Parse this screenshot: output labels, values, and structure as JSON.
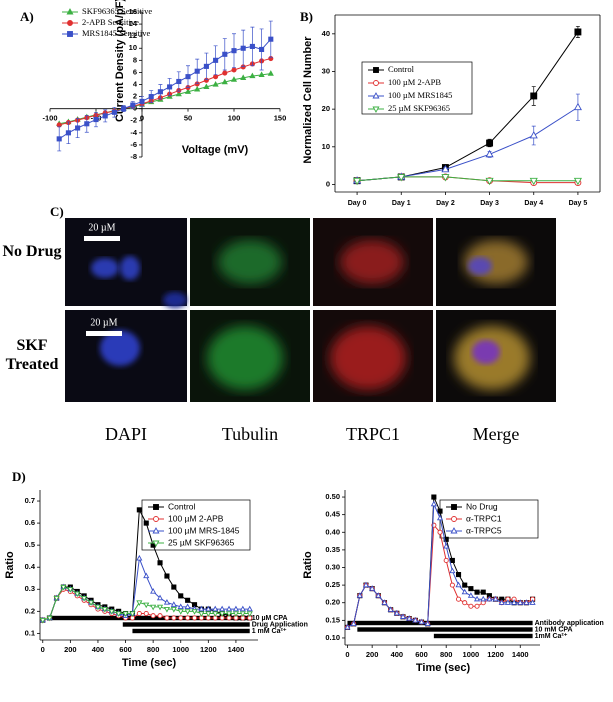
{
  "panels": {
    "a": "A)",
    "b": "B)",
    "c": "C)",
    "d": "D)"
  },
  "panel_c": {
    "rows": [
      "No Drug",
      "SKF Treated"
    ],
    "columns": [
      "DAPI",
      "Tubulin",
      "TRPC1",
      "Merge"
    ],
    "scale_bars": [
      "20 µM",
      "20 µM"
    ]
  },
  "chart_data": [
    {
      "type": "line",
      "x_label": "Voltage (mV)",
      "y_label": "Current Density (pA/pF)",
      "x": [
        -90,
        -80,
        -70,
        -60,
        -50,
        -40,
        -30,
        -20,
        -10,
        0,
        10,
        20,
        30,
        40,
        50,
        60,
        70,
        80,
        90,
        100,
        110,
        120,
        130,
        140
      ],
      "xlim": [
        -100,
        150
      ],
      "xticks": [
        -100,
        -50,
        0,
        50,
        100,
        150
      ],
      "ylim": [
        -8,
        16
      ],
      "yticks": [
        -8,
        -6,
        -4,
        -2,
        0,
        2,
        4,
        6,
        8,
        10,
        12,
        14,
        16
      ],
      "series": [
        {
          "name": "SKF96365 Sensitive",
          "color": "#3cb043",
          "marker": "triangle",
          "filled": true,
          "values": [
            -2.5,
            -2.2,
            -1.8,
            -1.4,
            -1.0,
            -0.7,
            -0.3,
            0,
            0.3,
            0.7,
            1.1,
            1.5,
            2,
            2.4,
            2.8,
            3.2,
            3.6,
            4,
            4.4,
            4.8,
            5.1,
            5.4,
            5.6,
            5.8
          ]
        },
        {
          "name": "2-APB Sensitive",
          "color": "#e03030",
          "marker": "circle",
          "filled": true,
          "values": [
            -2.7,
            -2.3,
            -1.9,
            -1.5,
            -1.1,
            -0.7,
            -0.4,
            0,
            0.4,
            0.8,
            1.3,
            1.8,
            2.4,
            3,
            3.5,
            4.1,
            4.7,
            5.3,
            5.9,
            6.4,
            6.9,
            7.4,
            7.9,
            8.3
          ]
        },
        {
          "name": "MRS1845 Sensitive",
          "color": "#3a50c8",
          "marker": "square",
          "filled": true,
          "values": [
            -5,
            -4,
            -3.2,
            -2.5,
            -1.8,
            -1.2,
            -0.6,
            0,
            0.6,
            1.2,
            2,
            2.8,
            3.6,
            4.5,
            5.3,
            6.2,
            7,
            8,
            9,
            9.6,
            10,
            10.3,
            9.8,
            11.5
          ],
          "errors": [
            2,
            1.8,
            1.6,
            1.4,
            1.2,
            1,
            0.8,
            0.5,
            0.6,
            0.8,
            1,
            1.2,
            1.4,
            1.6,
            1.8,
            2,
            2.2,
            2.4,
            2.6,
            2.8,
            3,
            3.2,
            3.4,
            3
          ]
        }
      ]
    },
    {
      "type": "line",
      "y_label": "Normalized Cell Number",
      "categories": [
        "Day 0",
        "Day 1",
        "Day 2",
        "Day 3",
        "Day 4",
        "Day 5"
      ],
      "ylim": [
        -2,
        45
      ],
      "yticks": [
        0,
        10,
        20,
        30,
        40
      ],
      "series": [
        {
          "name": "Control",
          "color": "#000000",
          "marker": "square",
          "filled": true,
          "values": [
            1,
            2,
            4.5,
            11,
            23.5,
            40.5
          ],
          "errors": [
            0.3,
            0.4,
            0.6,
            1,
            2.5,
            1.5
          ]
        },
        {
          "name": "100 µM 2-APB",
          "color": "#e03030",
          "marker": "circle",
          "filled": false,
          "values": [
            1,
            2,
            2,
            1,
            0.5,
            0.5
          ]
        },
        {
          "name": "100 µM MRS1845",
          "color": "#3a50c8",
          "marker": "triangle",
          "filled": false,
          "values": [
            1,
            2,
            4,
            8,
            13,
            20.5
          ],
          "errors": [
            0.2,
            0.3,
            0.5,
            0.8,
            2.5,
            3.5
          ]
        },
        {
          "name": "25 µM SKF96365",
          "color": "#3cb043",
          "marker": "triangle-down",
          "filled": false,
          "values": [
            1,
            2,
            2,
            1,
            1,
            1
          ]
        }
      ]
    },
    {
      "type": "line",
      "x_label": "Time (sec)",
      "y_label": "Ratio",
      "x": [
        0,
        50,
        100,
        150,
        200,
        250,
        300,
        350,
        400,
        450,
        500,
        550,
        600,
        650,
        700,
        750,
        800,
        850,
        900,
        950,
        1000,
        1050,
        1100,
        1150,
        1200,
        1250,
        1300,
        1350,
        1400,
        1450,
        1500
      ],
      "xlim": [
        -20,
        1560
      ],
      "xticks": [
        0,
        200,
        400,
        600,
        800,
        1000,
        1200,
        1400
      ],
      "ylim": [
        0.07,
        0.75
      ],
      "yticks": [
        0.1,
        0.2,
        0.3,
        0.4,
        0.5,
        0.6,
        0.7
      ],
      "bars": [
        {
          "label": "10 µM CPA",
          "start": 30,
          "end": 1500
        },
        {
          "label": "Drug Application",
          "start": 580,
          "end": 1500
        },
        {
          "label": "1 mM Ca²⁺",
          "start": 650,
          "end": 1500
        }
      ],
      "series": [
        {
          "name": "Control",
          "color": "#000000",
          "marker": "square",
          "filled": true,
          "values": [
            0.16,
            0.17,
            0.26,
            0.31,
            0.31,
            0.29,
            0.27,
            0.25,
            0.23,
            0.22,
            0.21,
            0.2,
            0.19,
            0.19,
            0.66,
            0.6,
            0.5,
            0.42,
            0.36,
            0.31,
            0.27,
            0.25,
            0.23,
            0.21,
            0.21,
            0.2,
            0.19,
            0.18,
            0.17,
            0.17,
            0.17
          ]
        },
        {
          "name": "100 µM 2-APB",
          "color": "#e03030",
          "marker": "circle",
          "filled": false,
          "values": [
            0.16,
            0.17,
            0.26,
            0.3,
            0.29,
            0.27,
            0.25,
            0.23,
            0.21,
            0.2,
            0.19,
            0.18,
            0.17,
            0.17,
            0.19,
            0.19,
            0.18,
            0.18,
            0.17,
            0.17,
            0.17,
            0.17,
            0.17,
            0.17,
            0.17,
            0.17,
            0.17,
            0.17,
            0.17,
            0.17,
            0.17
          ]
        },
        {
          "name": "100 µM MRS-1845",
          "color": "#3a50c8",
          "marker": "triangle",
          "filled": false,
          "values": [
            0.16,
            0.17,
            0.26,
            0.31,
            0.3,
            0.28,
            0.26,
            0.24,
            0.22,
            0.21,
            0.2,
            0.19,
            0.18,
            0.19,
            0.44,
            0.36,
            0.29,
            0.26,
            0.24,
            0.23,
            0.22,
            0.22,
            0.21,
            0.21,
            0.21,
            0.21,
            0.21,
            0.21,
            0.21,
            0.21,
            0.21
          ]
        },
        {
          "name": "25 µM SKF96365",
          "color": "#3cb043",
          "marker": "triangle-down",
          "filled": false,
          "values": [
            0.16,
            0.17,
            0.26,
            0.31,
            0.3,
            0.28,
            0.26,
            0.24,
            0.22,
            0.21,
            0.2,
            0.19,
            0.19,
            0.19,
            0.24,
            0.23,
            0.22,
            0.22,
            0.21,
            0.21,
            0.2,
            0.2,
            0.2,
            0.19,
            0.19,
            0.19,
            0.19,
            0.19,
            0.19,
            0.19,
            0.19
          ]
        }
      ]
    },
    {
      "type": "line",
      "x_label": "Time (sec)",
      "y_label": "Ratio",
      "x": [
        0,
        50,
        100,
        150,
        200,
        250,
        300,
        350,
        400,
        450,
        500,
        550,
        600,
        650,
        700,
        750,
        800,
        850,
        900,
        950,
        1000,
        1050,
        1100,
        1150,
        1200,
        1250,
        1300,
        1350,
        1400,
        1450,
        1500
      ],
      "xlim": [
        -20,
        1560
      ],
      "xticks": [
        0,
        200,
        400,
        600,
        800,
        1000,
        1200,
        1400
      ],
      "ylim": [
        0.08,
        0.52
      ],
      "yticks": [
        {
          "value": 0.1,
          "label": "0.10"
        },
        {
          "value": 0.15,
          "label": "0.15"
        },
        {
          "value": 0.2,
          "label": "0.20"
        },
        {
          "value": 0.25,
          "label": "0.25"
        },
        {
          "value": 0.3,
          "label": "0.30"
        },
        {
          "value": 0.35,
          "label": "0.35"
        },
        {
          "value": 0.4,
          "label": "0.40"
        },
        {
          "value": 0.45,
          "label": "0.45"
        },
        {
          "value": 0.5,
          "label": "0.50"
        }
      ],
      "bars": [
        {
          "label": "Antibody application",
          "start": 0,
          "end": 1500
        },
        {
          "label": "10 mM CPA",
          "start": 80,
          "end": 1500
        },
        {
          "label": "1mM Ca²⁺",
          "start": 700,
          "end": 1500
        }
      ],
      "series": [
        {
          "name": "No Drug",
          "color": "#000000",
          "marker": "square",
          "filled": true,
          "values": [
            0.13,
            0.14,
            0.22,
            0.25,
            0.24,
            0.22,
            0.2,
            0.18,
            0.17,
            0.16,
            0.155,
            0.15,
            0.145,
            0.14,
            0.5,
            0.46,
            0.38,
            0.32,
            0.28,
            0.25,
            0.24,
            0.23,
            0.23,
            0.22,
            0.21,
            0.21,
            0.21,
            0.2,
            0.2,
            0.2,
            0.21
          ]
        },
        {
          "name": "α-TRPC1",
          "color": "#e03030",
          "marker": "circle",
          "filled": false,
          "values": [
            0.13,
            0.14,
            0.22,
            0.25,
            0.24,
            0.22,
            0.2,
            0.18,
            0.17,
            0.16,
            0.155,
            0.15,
            0.145,
            0.14,
            0.42,
            0.4,
            0.32,
            0.25,
            0.21,
            0.2,
            0.19,
            0.19,
            0.2,
            0.21,
            0.21,
            0.2,
            0.21,
            0.21,
            0.2,
            0.2,
            0.21
          ]
        },
        {
          "name": "α-TRPC5",
          "color": "#3a50c8",
          "marker": "triangle",
          "filled": false,
          "values": [
            0.13,
            0.14,
            0.22,
            0.25,
            0.24,
            0.22,
            0.2,
            0.18,
            0.17,
            0.16,
            0.155,
            0.15,
            0.145,
            0.14,
            0.48,
            0.44,
            0.36,
            0.29,
            0.25,
            0.23,
            0.22,
            0.21,
            0.21,
            0.21,
            0.21,
            0.2,
            0.2,
            0.2,
            0.2,
            0.2,
            0.2
          ]
        }
      ]
    }
  ]
}
